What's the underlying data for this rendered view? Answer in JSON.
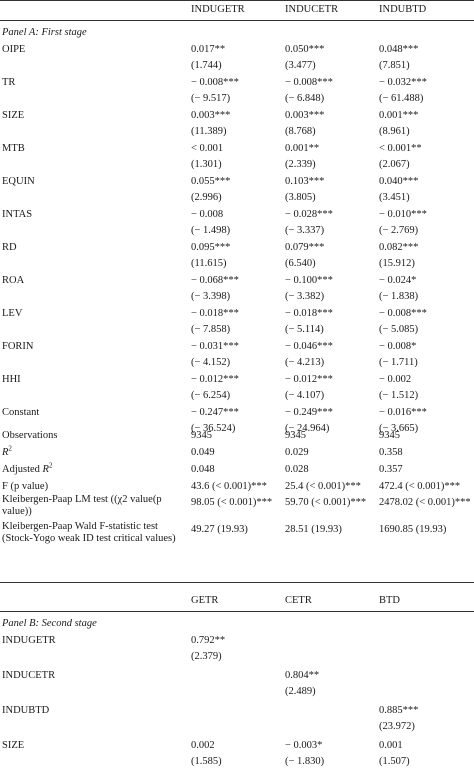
{
  "panelA": {
    "col_headers": [
      "INDUGETR",
      "INDUCETR",
      "INDUBTD"
    ],
    "title": "Panel A: First stage",
    "rows": [
      {
        "label": "OIPE",
        "v": [
          "0.017**",
          "0.050***",
          "0.048***"
        ],
        "t": [
          "(1.744)",
          "(3.477)",
          "(7.851)"
        ]
      },
      {
        "label": "TR",
        "v": [
          "− 0.008***",
          "− 0.008***",
          "− 0.032***"
        ],
        "t": [
          "(− 9.517)",
          "(− 6.848)",
          "(− 61.488)"
        ]
      },
      {
        "label": "SIZE",
        "v": [
          "0.003***",
          "0.003***",
          "0.001***"
        ],
        "t": [
          "(11.389)",
          "(8.768)",
          "(8.961)"
        ]
      },
      {
        "label": "MTB",
        "v": [
          "< 0.001",
          "0.001**",
          "< 0.001**"
        ],
        "t": [
          "(1.301)",
          "(2.339)",
          "(2.067)"
        ]
      },
      {
        "label": "EQUIN",
        "v": [
          "0.055***",
          "0.103***",
          "0.040***"
        ],
        "t": [
          "(2.996)",
          "(3.805)",
          "(3.451)"
        ]
      },
      {
        "label": "INTAS",
        "v": [
          "− 0.008",
          "− 0.028***",
          "− 0.010***"
        ],
        "t": [
          "(− 1.498)",
          "(− 3.337)",
          "(− 2.769)"
        ]
      },
      {
        "label": "RD",
        "v": [
          "0.095***",
          "0.079***",
          "0.082***"
        ],
        "t": [
          "(11.615)",
          "(6.540)",
          "(15.912)"
        ]
      },
      {
        "label": "ROA",
        "v": [
          "− 0.068***",
          "− 0.100***",
          "− 0.024*"
        ],
        "t": [
          "(− 3.398)",
          "(− 3.382)",
          "(− 1.838)"
        ]
      },
      {
        "label": "LEV",
        "v": [
          "− 0.018***",
          "− 0.018***",
          "− 0.008***"
        ],
        "t": [
          "(− 7.858)",
          "(− 5.114)",
          "(− 5.085)"
        ]
      },
      {
        "label": "FORIN",
        "v": [
          "− 0.031***",
          "− 0.046***",
          "− 0.008*"
        ],
        "t": [
          "(− 4.152)",
          "(− 4.213)",
          "(− 1.711)"
        ]
      },
      {
        "label": "HHI",
        "v": [
          "− 0.012***",
          "− 0.012***",
          "− 0.002"
        ],
        "t": [
          "(− 6.254)",
          "(− 4.107)",
          "(− 1.512)"
        ]
      },
      {
        "label": "Constant",
        "v": [
          "− 0.247***",
          "− 0.249***",
          "− 0.016***"
        ],
        "t": [
          "(− 36.524)",
          "(− 24.964)",
          "(− 3.665)"
        ]
      }
    ],
    "stats": [
      {
        "label": "Observations",
        "v": [
          "9345",
          "9345",
          "9345"
        ]
      },
      {
        "label_r": "R",
        "sup": "2",
        "v": [
          "0.049",
          "0.029",
          "0.358"
        ]
      },
      {
        "label": "Adjusted ",
        "label_r": "R",
        "sup": "2",
        "v": [
          "0.048",
          "0.028",
          "0.357"
        ]
      },
      {
        "label": "F (p value)",
        "v": [
          "43.6 (< 0.001)***",
          "25.4 (< 0.001)***",
          "472.4 (< 0.001)***"
        ]
      },
      {
        "label": "Kleibergen-Paap LM test ((χ2 value(p value))",
        "v": [
          "98.05 (< 0.001)***",
          "59.70 (< 0.001)***",
          "2478.02 (< 0.001)***"
        ]
      },
      {
        "label": "Kleibergen-Paap Wald F-statistic test (Stock-Yogo weak ID test critical values)",
        "v": [
          "49.27 (19.93)",
          "28.51 (19.93)",
          "1690.85 (19.93)"
        ]
      }
    ]
  },
  "panelB": {
    "col_headers": [
      "GETR",
      "CETR",
      "BTD"
    ],
    "title": "Panel B: Second stage",
    "rows": [
      {
        "label": "INDUGETR",
        "v": [
          "0.792**",
          "",
          ""
        ],
        "t": [
          "(2.379)",
          "",
          ""
        ]
      },
      {
        "label": "INDUCETR",
        "v": [
          "",
          "0.804**",
          ""
        ],
        "t": [
          "",
          "(2.489)",
          ""
        ]
      },
      {
        "label": "INDUBTD",
        "v": [
          "",
          "",
          "0.885***"
        ],
        "t": [
          "",
          "",
          "(23.972)"
        ]
      },
      {
        "label": "SIZE",
        "v": [
          "0.002",
          "− 0.003*",
          "0.001"
        ],
        "t": [
          "(1.585)",
          "(− 1.830)",
          "(1.507)"
        ]
      }
    ]
  }
}
